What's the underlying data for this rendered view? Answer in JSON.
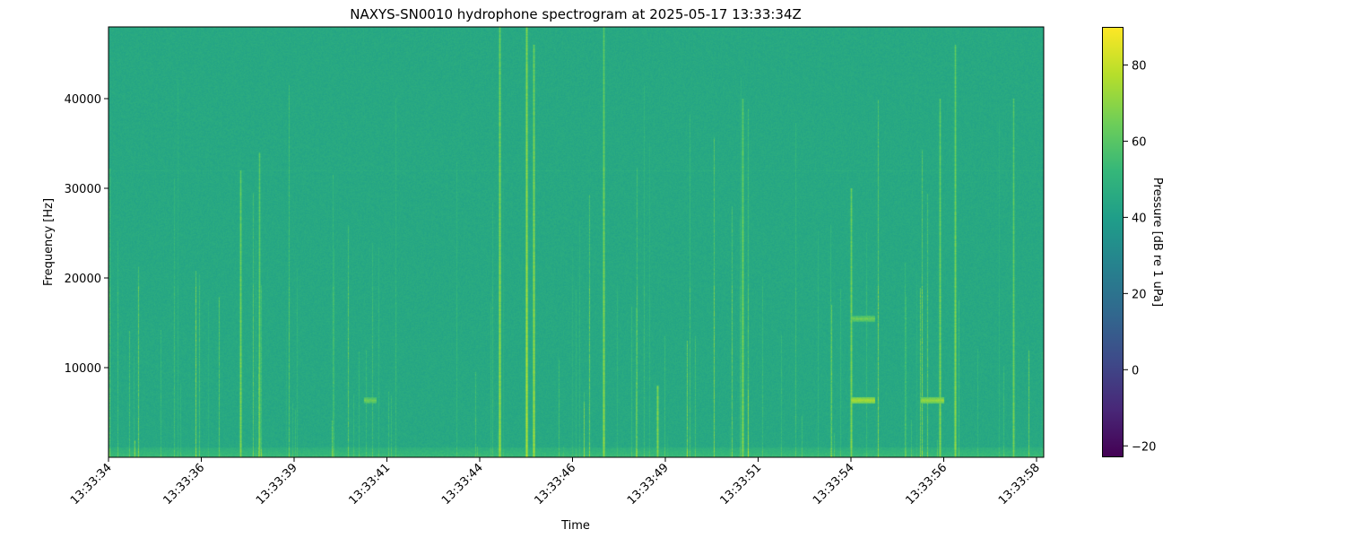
{
  "chart_data": {
    "type": "heatmap",
    "title": "NAXYS-SN0010 hydrophone spectrogram at 2025-05-17 13:33:34Z",
    "xlabel": "Time",
    "ylabel": "Frequency [Hz]",
    "xticks": [
      "13:33:34",
      "13:33:36",
      "13:33:39",
      "13:33:41",
      "13:33:44",
      "13:33:46",
      "13:33:49",
      "13:33:51",
      "13:33:54",
      "13:33:56",
      "13:33:58"
    ],
    "xlim": [
      "13:33:34",
      "13:33:58.2"
    ],
    "yticks": [
      10000,
      20000,
      30000,
      40000
    ],
    "ylim": [
      0,
      48000
    ],
    "colormap": "viridis",
    "colorbar": {
      "label": "Pressure [dB re 1 uPa]",
      "ticks": [
        -20,
        0,
        20,
        40,
        60,
        80
      ],
      "range": [
        -23,
        90
      ]
    },
    "background_level_db": 45,
    "transients": [
      {
        "time": "13:33:37.4",
        "fmax": 32000,
        "level_db": 70
      },
      {
        "time": "13:33:37.9",
        "fmax": 34000,
        "level_db": 68
      },
      {
        "time": "13:33:44.1",
        "fmax": 48000,
        "level_db": 75
      },
      {
        "time": "13:33:44.8",
        "fmax": 48000,
        "level_db": 78
      },
      {
        "time": "13:33:45.0",
        "fmax": 46000,
        "level_db": 75
      },
      {
        "time": "13:33:46.8",
        "fmax": 48000,
        "level_db": 72
      },
      {
        "time": "13:33:48.2",
        "fmax": 8000,
        "level_db": 70
      },
      {
        "time": "13:33:50.4",
        "fmax": 40000,
        "level_db": 70
      },
      {
        "time": "13:33:53.2",
        "fmax": 30000,
        "level_db": 70
      },
      {
        "time": "13:33:55.5",
        "fmax": 40000,
        "level_db": 70
      },
      {
        "time": "13:33:55.9",
        "fmax": 46000,
        "level_db": 72
      },
      {
        "time": "13:33:57.4",
        "fmax": 40000,
        "level_db": 68
      }
    ],
    "tonal_patches": [
      {
        "start": "13:33:53.2",
        "end": "13:33:53.8",
        "freq": 6400,
        "level_db": 75
      },
      {
        "start": "13:33:55.0",
        "end": "13:33:55.6",
        "freq": 6400,
        "level_db": 72
      },
      {
        "start": "13:33:53.2",
        "end": "13:33:53.8",
        "freq": 15500,
        "level_db": 65
      },
      {
        "start": "13:33:40.6",
        "end": "13:33:40.9",
        "freq": 6400,
        "level_db": 65
      }
    ]
  }
}
